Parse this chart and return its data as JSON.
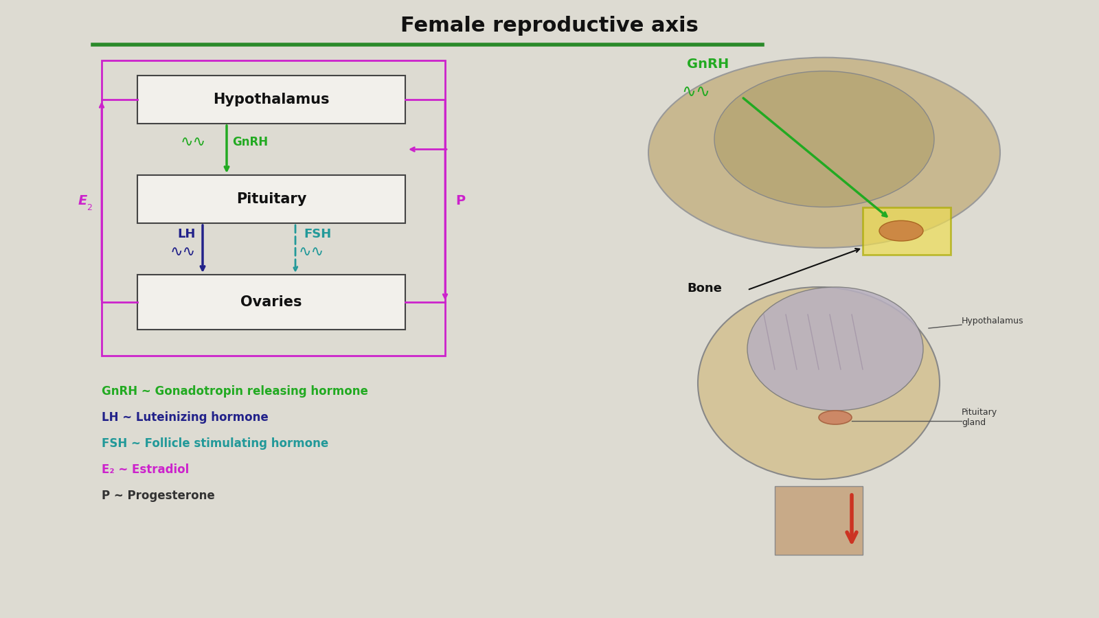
{
  "title": "Female reproductive axis",
  "title_fontsize": 18,
  "title_fontweight": "bold",
  "bg_color": "#c8c6be",
  "slide_bg": "#dddbd2",
  "box_bg": "#f2f0eb",
  "box_border": "#444444",
  "green_line_color": "#2a8a2a",
  "hypothalamus_label": "Hypothalamus",
  "pituitary_label": "Pituitary",
  "ovaries_label": "Ovaries",
  "gnrh_label": "GnRH",
  "lh_label": "LH",
  "fsh_label": "FSH",
  "e2_label": "E",
  "p_label": "P",
  "gnrh_color": "#22aa22",
  "lh_color": "#22228a",
  "fsh_color": "#229999",
  "e2_color": "#cc22cc",
  "p_color": "#cc22cc",
  "feedback_color": "#cc22cc",
  "box_label_color": "#111111",
  "legend_items": [
    {
      "text": "GnRH ~ Gonadotropin releasing hormone",
      "color": "#22aa22"
    },
    {
      "text": "LH ~ Luteinizing hormone",
      "color": "#22228a"
    },
    {
      "text": "FSH ~ Follicle stimulating hormone",
      "color": "#229999"
    },
    {
      "text": "E₂ ~ Estradiol",
      "color": "#cc22cc"
    },
    {
      "text": "P ~ Progesterone",
      "color": "#333333"
    }
  ]
}
